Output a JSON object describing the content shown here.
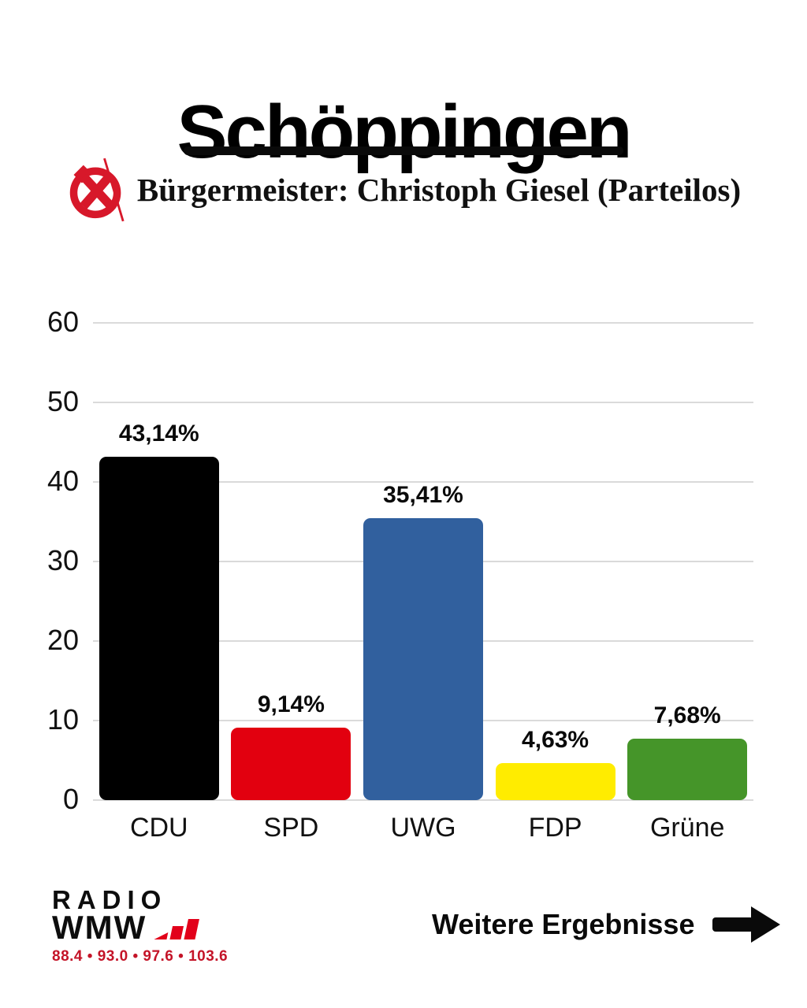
{
  "header": {
    "title": "Schöppingen",
    "subtitle": "Bürgermeister: Christoph Giesel (Parteilos)"
  },
  "chart_data": {
    "type": "bar",
    "title": "Schöppingen",
    "subtitle": "Bürgermeister: Christoph Giesel (Parteilos)",
    "categories": [
      "CDU",
      "SPD",
      "UWG",
      "FDP",
      "Grüne"
    ],
    "values": [
      43.14,
      9.14,
      35.41,
      4.63,
      7.68
    ],
    "value_labels": [
      "43,14%",
      "9,14%",
      "35,41%",
      "4,63%",
      "7,68%"
    ],
    "bar_colors": [
      "#000000",
      "#e2000f",
      "#31609e",
      "#ffec00",
      "#459529"
    ],
    "xlabel": "",
    "ylabel": "",
    "ylim": [
      0,
      60
    ],
    "yticks": [
      0,
      10,
      20,
      30,
      40,
      50,
      60
    ],
    "grid": true,
    "legend": "none"
  },
  "footer": {
    "logo": {
      "line1": "RADIO",
      "line2": "WMW",
      "frequencies": "88.4 • 93.0 • 97.6 • 103.6"
    },
    "more_label": "Weitere Ergebnisse"
  },
  "colors": {
    "accent_red": "#d7182a",
    "logo_red": "#e2001a",
    "frequency_red": "#c41428",
    "gridline": "#dadada",
    "text": "#0a0a0a",
    "background": "#ffffff"
  }
}
